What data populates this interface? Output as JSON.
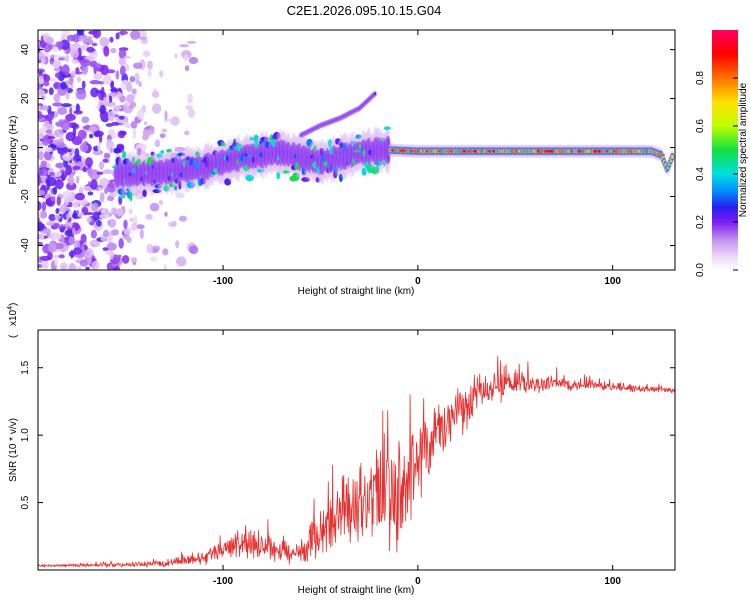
{
  "title": "C2E1.2026.095.10.15.G04",
  "chart_data": [
    {
      "type": "heatmap",
      "panel": "top",
      "xlabel": "Height of straight line (km)",
      "ylabel": "Frequency (Hz)",
      "xlim": [
        -195,
        132
      ],
      "ylim": [
        -50,
        48
      ],
      "xticks": [
        -100,
        0,
        100
      ],
      "xtick_labels": [
        "-100",
        "0",
        "100"
      ],
      "yticks": [
        -40,
        -20,
        0,
        20,
        40
      ],
      "ytick_labels": [
        "-40",
        "-20",
        "0",
        "20",
        "40"
      ],
      "colorbar": {
        "label": "Normalized spectral amplitude",
        "range": [
          0,
          1
        ],
        "ticks": [
          0.0,
          0.2,
          0.4,
          0.6,
          0.8
        ],
        "tick_labels": [
          "0.0",
          "0.2",
          "0.4",
          "0.6",
          "0.8"
        ],
        "colors": [
          "#f4e6f8",
          "#c896ee",
          "#7c1cf0",
          "#2a1ef0",
          "#0090ff",
          "#00e0e0",
          "#10e040",
          "#c0ff00",
          "#ffe000",
          "#ff7000",
          "#ff0000",
          "#ff00c0"
        ]
      },
      "ridge_frequency_hz": {
        "x_km": [
          -150,
          -130,
          -110,
          -90,
          -70,
          -50,
          -30,
          -15,
          0,
          20,
          40,
          60,
          80,
          100,
          120,
          125,
          128,
          131
        ],
        "freq_hz": [
          -11,
          -10,
          -8,
          -4,
          -2,
          -6,
          -2,
          -1,
          -1.5,
          -1.5,
          -1.5,
          -1.5,
          -1.5,
          -1.5,
          -1.5,
          -3,
          -9,
          -3
        ]
      },
      "drift_trace": {
        "x_km": [
          -60,
          -50,
          -40,
          -30,
          -22
        ],
        "freq_hz": [
          5,
          9,
          12,
          16,
          22
        ]
      },
      "noise_region_km": [
        -195,
        -115
      ]
    },
    {
      "type": "line",
      "panel": "bottom",
      "xlabel": "Height of straight line (km)",
      "ylabel": "SNR (10 * v/v)",
      "y_multiplier": "x10",
      "y_multiplier_exp": "4",
      "xlim": [
        -195,
        132
      ],
      "ylim": [
        0,
        1.78
      ],
      "xticks": [
        -100,
        0,
        100
      ],
      "xtick_labels": [
        "-100",
        "0",
        "100"
      ],
      "yticks": [
        0.5,
        1.0,
        1.5
      ],
      "ytick_labels": [
        "0.5",
        "1.0",
        "1.5"
      ],
      "color": "#e83030",
      "envelope_x_km": [
        -195,
        -150,
        -130,
        -110,
        -100,
        -90,
        -80,
        -70,
        -60,
        -50,
        -40,
        -30,
        -20,
        -15,
        -10,
        0,
        10,
        20,
        30,
        40,
        50,
        60,
        70,
        80,
        90,
        100,
        110,
        120,
        132
      ],
      "envelope_mean": [
        0.03,
        0.04,
        0.05,
        0.08,
        0.15,
        0.2,
        0.2,
        0.15,
        0.1,
        0.3,
        0.4,
        0.45,
        0.55,
        0.6,
        0.55,
        0.8,
        1.0,
        1.15,
        1.28,
        1.35,
        1.38,
        1.38,
        1.38,
        1.37,
        1.37,
        1.36,
        1.35,
        1.34,
        1.33
      ],
      "envelope_spread": [
        0.01,
        0.02,
        0.03,
        0.05,
        0.08,
        0.12,
        0.14,
        0.12,
        0.1,
        0.25,
        0.3,
        0.35,
        0.45,
        0.5,
        0.45,
        0.4,
        0.3,
        0.2,
        0.18,
        0.15,
        0.12,
        0.08,
        0.06,
        0.05,
        0.04,
        0.04,
        0.04,
        0.03,
        0.02
      ]
    }
  ]
}
